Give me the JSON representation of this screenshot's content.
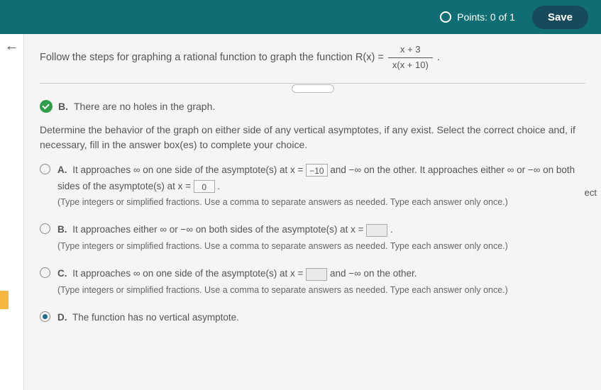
{
  "topbar": {
    "points_label": "Points: 0 of 1",
    "save_label": "Save"
  },
  "question": {
    "lead": "Follow the steps for graphing a rational function to graph the function R(x) = ",
    "frac_num": "x + 3",
    "frac_den": "x(x + 10)",
    "tail": "."
  },
  "holes": {
    "letter": "B.",
    "text": "There are no holes in the graph."
  },
  "instruction": "Determine the behavior of the graph on either side of any vertical asymptotes, if any exist. Select the correct choice and, if necessary, fill in the answer box(es) to complete your choice.",
  "options": {
    "A": {
      "letter": "A.",
      "part1": "It approaches ∞ on one side of the asymptote(s) at x = ",
      "input1": "−10",
      "mid": " and −∞ on the other. It approaches either ∞ or −∞ on both sides of the asymptote(s) at x = ",
      "input2": "0",
      "tail": ".",
      "hint": "(Type integers or simplified fractions. Use a comma to separate answers as needed. Type each answer only once.)"
    },
    "B": {
      "letter": "B.",
      "part1": "It approaches either ∞ or −∞ on both sides of the asymptote(s) at x = ",
      "tail": ".",
      "hint": "(Type integers or simplified fractions. Use a comma to separate answers as needed. Type each answer only once.)"
    },
    "C": {
      "letter": "C.",
      "part1": "It approaches ∞ on one side of the asymptote(s) at x = ",
      "mid": " and −∞ on the other.",
      "hint": "(Type integers or simplified fractions. Use a comma to separate answers as needed. Type each answer only once.)"
    },
    "D": {
      "letter": "D.",
      "text": "The function has no vertical asymptote."
    }
  },
  "right_note": "ect",
  "colors": {
    "topbar_bg": "#0f6e74",
    "save_bg": "#174a5a",
    "marker": "#f5b740",
    "radio_sel": "#1a6b8f",
    "check": "#2e9e4a"
  }
}
